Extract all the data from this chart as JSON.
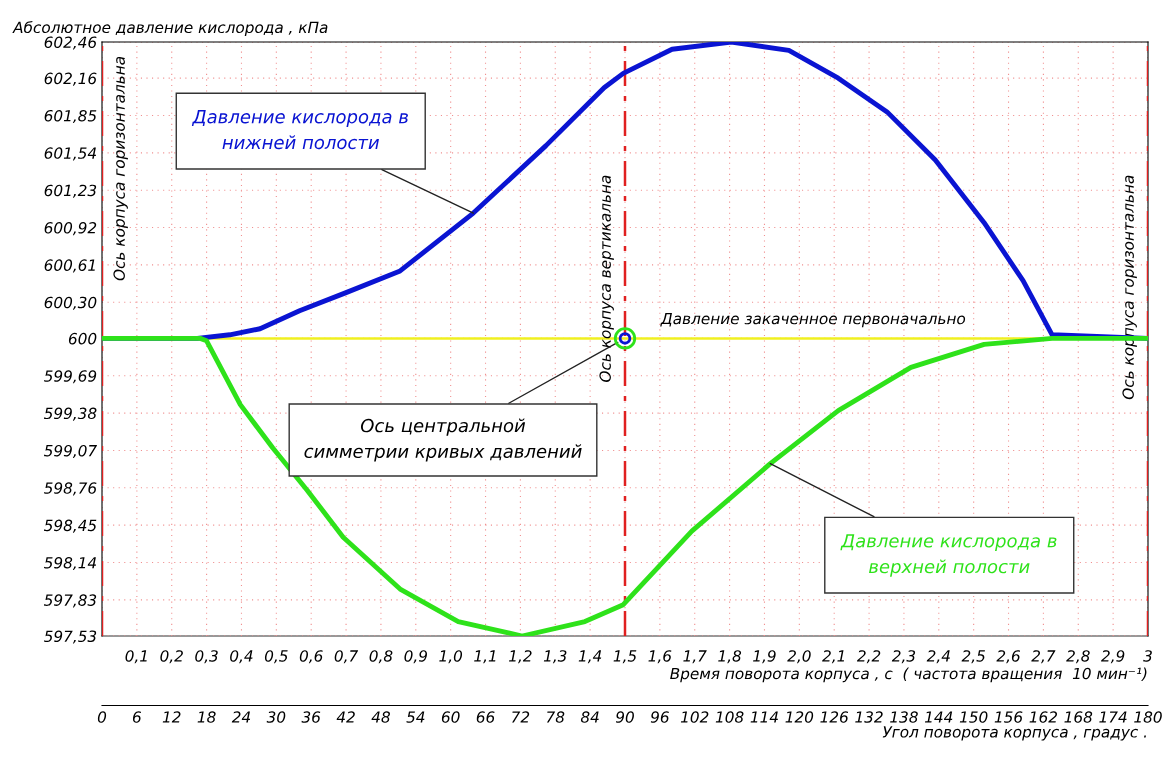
{
  "chart_data": {
    "type": "line",
    "ylabel": "Абсолютное давление кислорода , кПа",
    "xlabel": "Угол поворота корпуса , градус .",
    "x2label": "Время поворота корпуса , с  ( частота вращения  10 мин⁻¹)",
    "xlim": [
      0,
      180
    ],
    "xticks": [
      0,
      6,
      12,
      18,
      24,
      30,
      36,
      42,
      48,
      54,
      60,
      66,
      72,
      78,
      84,
      90,
      96,
      102,
      108,
      114,
      120,
      126,
      132,
      138,
      144,
      150,
      156,
      162,
      168,
      174,
      180
    ],
    "x2lim": [
      0,
      3
    ],
    "x2ticks": [
      {
        "value": 0.1,
        "label": "0,1"
      },
      {
        "value": 0.2,
        "label": "0,2"
      },
      {
        "value": 0.3,
        "label": "0,3"
      },
      {
        "value": 0.4,
        "label": "0,4"
      },
      {
        "value": 0.5,
        "label": "0,5"
      },
      {
        "value": 0.6,
        "label": "0,6"
      },
      {
        "value": 0.7,
        "label": "0,7"
      },
      {
        "value": 0.8,
        "label": "0,8"
      },
      {
        "value": 0.9,
        "label": "0,9"
      },
      {
        "value": 1.0,
        "label": "1,0"
      },
      {
        "value": 1.1,
        "label": "1,1"
      },
      {
        "value": 1.2,
        "label": "1,2"
      },
      {
        "value": 1.3,
        "label": "1,3"
      },
      {
        "value": 1.4,
        "label": "1,4"
      },
      {
        "value": 1.5,
        "label": "1,5"
      },
      {
        "value": 1.6,
        "label": "1,6"
      },
      {
        "value": 1.7,
        "label": "1,7"
      },
      {
        "value": 1.8,
        "label": "1,8"
      },
      {
        "value": 1.9,
        "label": "1,9"
      },
      {
        "value": 2.0,
        "label": "2,0"
      },
      {
        "value": 2.1,
        "label": "2,1"
      },
      {
        "value": 2.2,
        "label": "2,2"
      },
      {
        "value": 2.3,
        "label": "2,3"
      },
      {
        "value": 2.4,
        "label": "2,4"
      },
      {
        "value": 2.5,
        "label": "2,5"
      },
      {
        "value": 2.6,
        "label": "2,6"
      },
      {
        "value": 2.7,
        "label": "2,7"
      },
      {
        "value": 2.8,
        "label": "2,8"
      },
      {
        "value": 2.9,
        "label": "2,9"
      },
      3
    ],
    "ylim": [
      597.53,
      602.46
    ],
    "yticks": [
      {
        "value": 597.53,
        "label": "597,53"
      },
      {
        "value": 597.83,
        "label": "597,83"
      },
      {
        "value": 598.14,
        "label": "598,14"
      },
      {
        "value": 598.45,
        "label": "598,45"
      },
      {
        "value": 598.76,
        "label": "598,76"
      },
      {
        "value": 599.07,
        "label": "599,07"
      },
      {
        "value": 599.38,
        "label": "599,38"
      },
      {
        "value": 599.69,
        "label": "599,69"
      },
      600,
      {
        "value": 600.3,
        "label": "600,30"
      },
      {
        "value": 600.61,
        "label": "600,61"
      },
      {
        "value": 600.92,
        "label": "600,92"
      },
      {
        "value": 601.23,
        "label": "601,23"
      },
      {
        "value": 601.54,
        "label": "601,54"
      },
      {
        "value": 601.85,
        "label": "601,85"
      },
      {
        "value": 602.16,
        "label": "602,16"
      },
      {
        "value": 602.46,
        "label": "602,46"
      }
    ],
    "grid": true,
    "line_style": "solid",
    "series": [
      {
        "name": "Давление кислорода в\nнижней полости",
        "color": "#0a14d2",
        "x": [
          0,
          16.4,
          22,
          27.2,
          34,
          42,
          51.3,
          63.9,
          76.4,
          86.4,
          89.7,
          98.1,
          108.3,
          118.2,
          126.7,
          135.1,
          143.4,
          151.8,
          158.5,
          163.5,
          180
        ],
        "values": [
          600,
          600,
          600.03,
          600.08,
          600.23,
          600.38,
          600.56,
          601.04,
          601.6,
          602.08,
          602.2,
          602.4,
          602.46,
          602.39,
          602.16,
          601.88,
          601.48,
          600.96,
          600.48,
          600.03,
          600
        ]
      },
      {
        "name": "Давление кислорода в\nверхней полости",
        "color": "#2ee21a",
        "x": [
          0,
          16.9,
          18,
          23.8,
          29.4,
          35.3,
          41.5,
          51.3,
          61.3,
          72.3,
          83.1,
          89.7,
          101.5,
          115,
          126.7,
          139.2,
          151.8,
          163.5,
          180
        ],
        "values": [
          600,
          600,
          599.98,
          599.45,
          599.09,
          598.74,
          598.35,
          597.92,
          597.65,
          597.53,
          597.65,
          597.79,
          598.4,
          598.96,
          599.4,
          599.76,
          599.95,
          600,
          600
        ]
      }
    ],
    "ref_lines": [
      {
        "axis": "x",
        "value": 0,
        "label": "Ось корпуса горизонтальна",
        "color": "#e02020",
        "line_style": "dashed"
      },
      {
        "axis": "x",
        "value": 90,
        "label": "Ось корпуса вертикальна",
        "color": "#e02020",
        "line_style": "dashed"
      },
      {
        "axis": "x",
        "value": 180,
        "label": "Ось корпуса горизонтальна",
        "color": "#e02020",
        "line_style": "dashed"
      },
      {
        "axis": "y",
        "value": 600,
        "label": "Давление закаченное первоначально",
        "color": "#f0f020",
        "line_style": "solid"
      }
    ],
    "annotations": [
      {
        "text": "Ось центральной\nсимметрии кривых давлений",
        "x": 90,
        "y": 600
      }
    ]
  }
}
